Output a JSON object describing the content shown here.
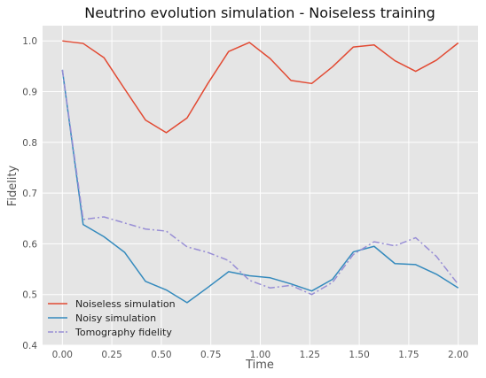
{
  "chart_data": {
    "type": "line",
    "title": "Neutrino evolution simulation - Noiseless training",
    "xlabel": "Time",
    "ylabel": "Fidelity",
    "xlim": [
      -0.1,
      2.1
    ],
    "ylim": [
      0.4,
      1.03
    ],
    "x_ticks": [
      "0.00",
      "0.25",
      "0.50",
      "0.75",
      "1.00",
      "1.25",
      "1.50",
      "1.75",
      "2.00"
    ],
    "y_ticks": [
      "0.4",
      "0.5",
      "0.6",
      "0.7",
      "0.8",
      "0.9",
      "1.0"
    ],
    "grid": true,
    "legend_position": "lower-left",
    "x": [
      0.0,
      0.105,
      0.21,
      0.315,
      0.42,
      0.525,
      0.63,
      0.735,
      0.84,
      0.945,
      1.05,
      1.155,
      1.26,
      1.365,
      1.47,
      1.575,
      1.68,
      1.785,
      1.89,
      2.0
    ],
    "series": [
      {
        "name": "Noiseless simulation",
        "color": "#e24a33",
        "dash": "solid",
        "values": [
          1.0,
          0.995,
          0.967,
          0.905,
          0.844,
          0.819,
          0.848,
          0.916,
          0.979,
          0.997,
          0.965,
          0.922,
          0.916,
          0.949,
          0.988,
          0.992,
          0.961,
          0.94,
          0.962,
          0.996
        ]
      },
      {
        "name": "Noisy simulation",
        "color": "#348abd",
        "dash": "solid",
        "values": [
          0.943,
          0.638,
          0.614,
          0.583,
          0.526,
          0.509,
          0.484,
          0.514,
          0.545,
          0.537,
          0.533,
          0.521,
          0.507,
          0.53,
          0.584,
          0.595,
          0.561,
          0.559,
          0.54,
          0.513
        ]
      },
      {
        "name": "Tomography fidelity",
        "color": "#988ed5",
        "dash": "dashdot",
        "values": [
          0.943,
          0.648,
          0.653,
          0.641,
          0.629,
          0.625,
          0.594,
          0.583,
          0.567,
          0.528,
          0.513,
          0.518,
          0.5,
          0.524,
          0.579,
          0.604,
          0.596,
          0.612,
          0.575,
          0.52
        ]
      }
    ]
  }
}
